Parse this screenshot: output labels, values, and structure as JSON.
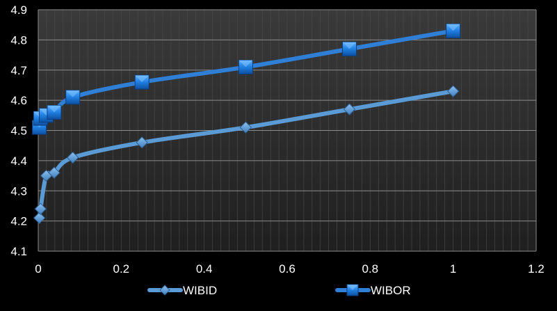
{
  "chart_data": {
    "type": "line",
    "title": "",
    "xlabel": "",
    "ylabel": "",
    "xlim": [
      0,
      1.2
    ],
    "ylim": [
      4.1,
      4.9
    ],
    "x_ticks": [
      "0",
      "0.2",
      "0.4",
      "0.6",
      "0.8",
      "1",
      "1.2"
    ],
    "y_ticks": [
      "4.1",
      "4.2",
      "4.3",
      "4.4",
      "4.5",
      "4.6",
      "4.7",
      "4.8",
      "4.9"
    ],
    "grid": true,
    "smooth": true,
    "legend_position": "bottom",
    "series": [
      {
        "name": "WIBID",
        "color": "#5b9bd5",
        "marker": "diamond",
        "x": [
          0.0027,
          0.0055,
          0.0192,
          0.0384,
          0.0833,
          0.25,
          0.5,
          0.75,
          1.0
        ],
        "y": [
          4.21,
          4.24,
          4.35,
          4.36,
          4.41,
          4.46,
          4.51,
          4.57,
          4.63
        ]
      },
      {
        "name": "WIBOR",
        "color": "#2f7fd6",
        "marker": "square",
        "x": [
          0.0027,
          0.0055,
          0.0192,
          0.0384,
          0.0833,
          0.25,
          0.5,
          0.75,
          1.0
        ],
        "y": [
          4.51,
          4.54,
          4.55,
          4.56,
          4.61,
          4.66,
          4.71,
          4.77,
          4.83
        ]
      }
    ]
  }
}
